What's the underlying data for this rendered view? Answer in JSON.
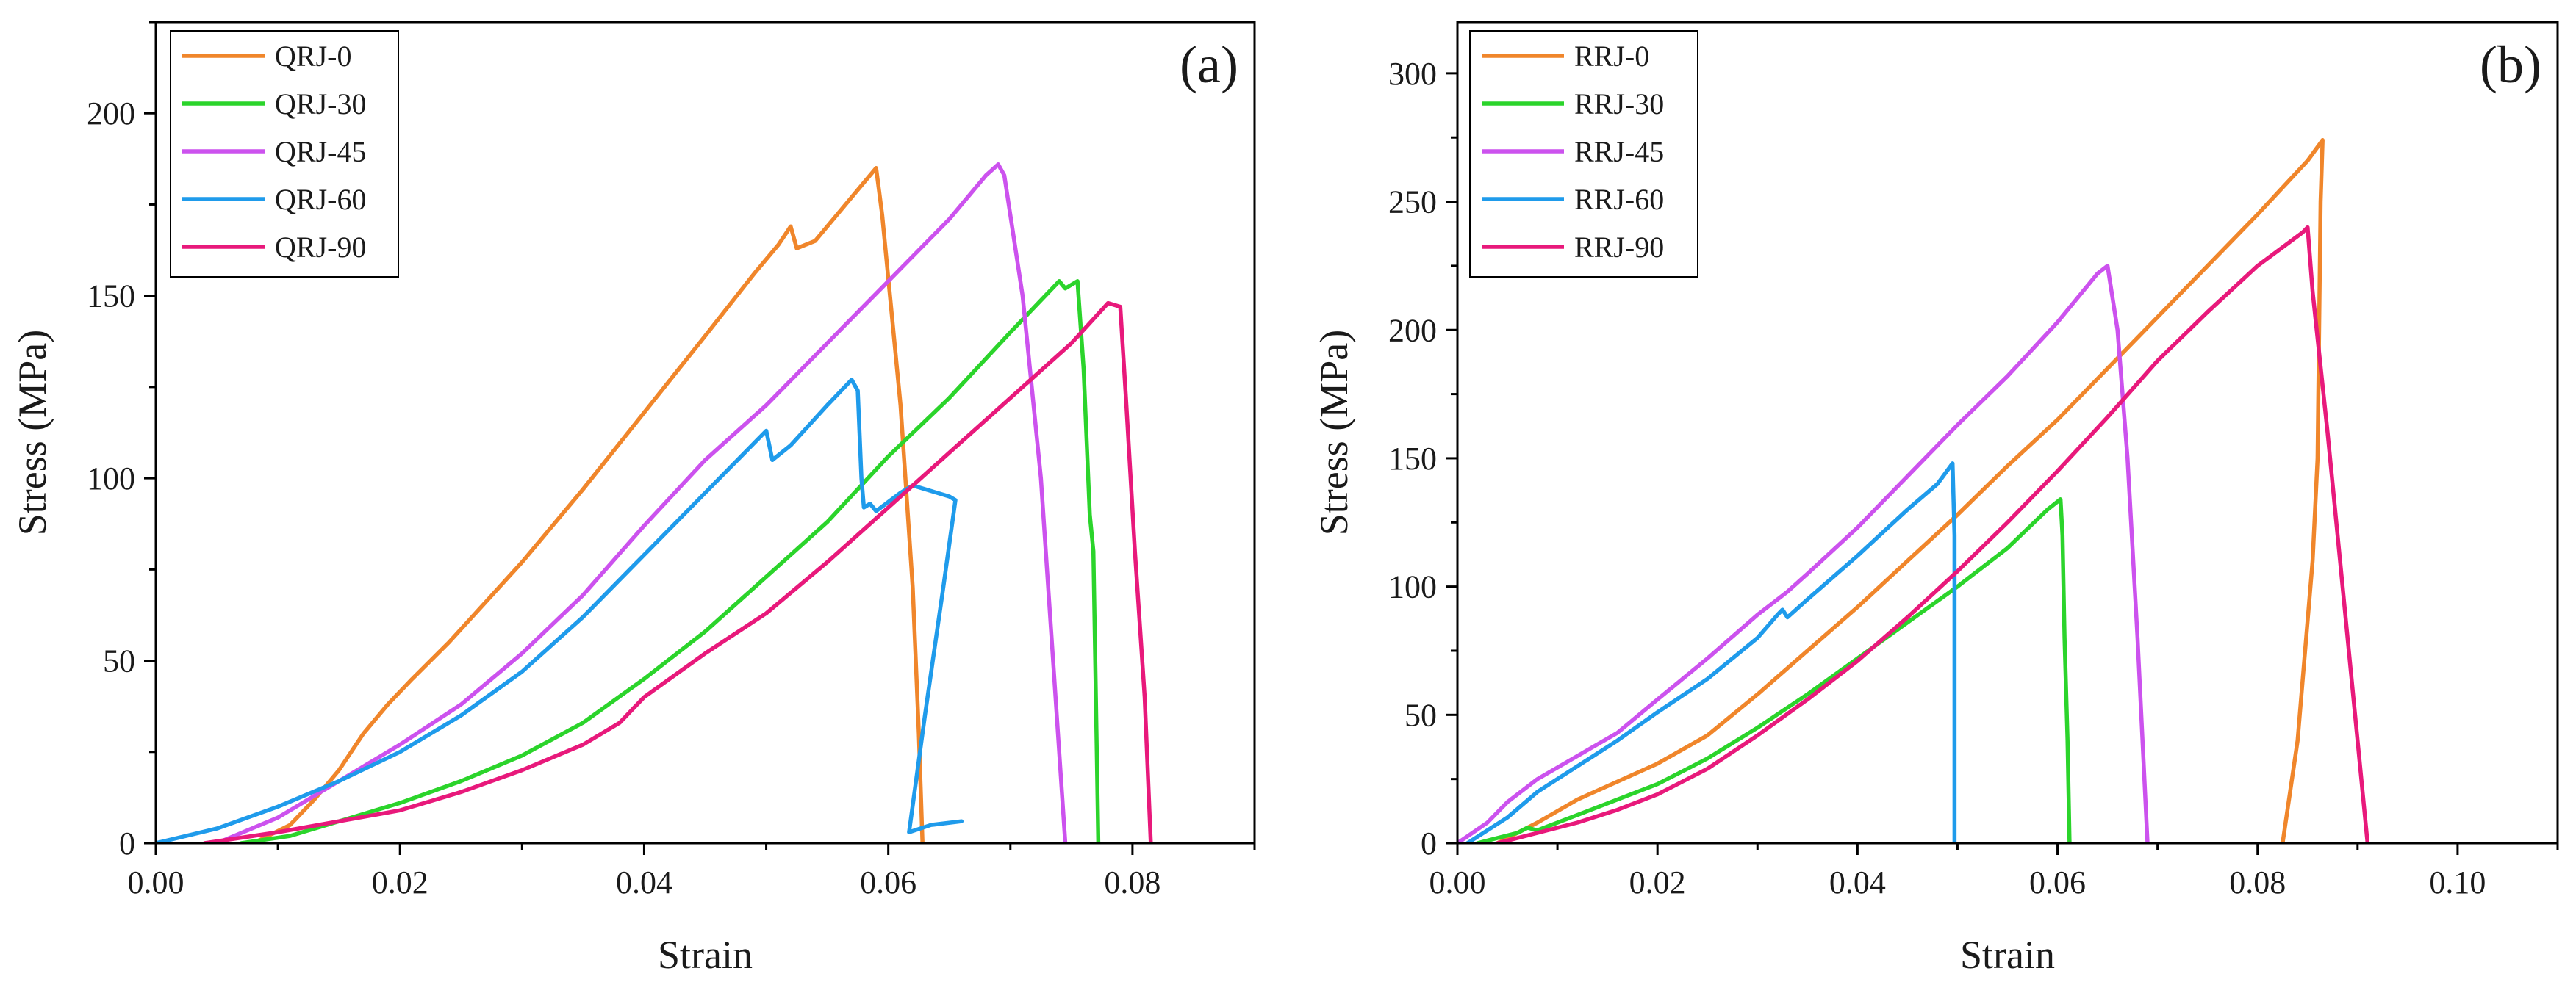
{
  "chart_data": [
    {
      "type": "line",
      "panel_label": "(a)",
      "xlabel": "Strain",
      "ylabel": "Stress (MPa)",
      "xlim": [
        0,
        0.09
      ],
      "ylim": [
        0,
        225
      ],
      "xticks": [
        0,
        0.02,
        0.04,
        0.06,
        0.08
      ],
      "xtick_labels": [
        "0.00",
        "0.02",
        "0.04",
        "0.06",
        "0.08"
      ],
      "yticks": [
        0,
        50,
        100,
        150,
        200
      ],
      "ytick_labels": [
        "0",
        "50",
        "100",
        "150",
        "200"
      ],
      "legend_position": "top-left",
      "series": [
        {
          "name": "QRJ-0",
          "color": "#F0862B",
          "points": [
            [
              0.008,
              0
            ],
            [
              0.011,
              5
            ],
            [
              0.013,
              12
            ],
            [
              0.015,
              20
            ],
            [
              0.017,
              30
            ],
            [
              0.019,
              38
            ],
            [
              0.021,
              45
            ],
            [
              0.024,
              55
            ],
            [
              0.03,
              77
            ],
            [
              0.035,
              97
            ],
            [
              0.04,
              118
            ],
            [
              0.045,
              139
            ],
            [
              0.049,
              156
            ],
            [
              0.051,
              164
            ],
            [
              0.052,
              169
            ],
            [
              0.0525,
              163
            ],
            [
              0.054,
              165
            ],
            [
              0.056,
              173
            ],
            [
              0.058,
              181
            ],
            [
              0.059,
              185
            ],
            [
              0.0595,
              172
            ],
            [
              0.061,
              120
            ],
            [
              0.062,
              70
            ],
            [
              0.0625,
              30
            ],
            [
              0.0628,
              0
            ]
          ]
        },
        {
          "name": "QRJ-30",
          "color": "#2BD42B",
          "points": [
            [
              0.007,
              0
            ],
            [
              0.011,
              2
            ],
            [
              0.015,
              6
            ],
            [
              0.02,
              11
            ],
            [
              0.025,
              17
            ],
            [
              0.03,
              24
            ],
            [
              0.035,
              33
            ],
            [
              0.04,
              45
            ],
            [
              0.045,
              58
            ],
            [
              0.05,
              73
            ],
            [
              0.055,
              88
            ],
            [
              0.06,
              106
            ],
            [
              0.065,
              122
            ],
            [
              0.07,
              140
            ],
            [
              0.074,
              154
            ],
            [
              0.0745,
              152
            ],
            [
              0.0755,
              154
            ],
            [
              0.076,
              130
            ],
            [
              0.0765,
              90
            ],
            [
              0.0768,
              80
            ],
            [
              0.077,
              40
            ],
            [
              0.0772,
              0
            ]
          ]
        },
        {
          "name": "QRJ-45",
          "color": "#CC52EE",
          "points": [
            [
              0.005,
              0
            ],
            [
              0.01,
              7
            ],
            [
              0.015,
              17
            ],
            [
              0.02,
              27
            ],
            [
              0.025,
              38
            ],
            [
              0.03,
              52
            ],
            [
              0.035,
              68
            ],
            [
              0.04,
              87
            ],
            [
              0.045,
              105
            ],
            [
              0.05,
              120
            ],
            [
              0.055,
              137
            ],
            [
              0.06,
              154
            ],
            [
              0.065,
              171
            ],
            [
              0.068,
              183
            ],
            [
              0.069,
              186
            ],
            [
              0.0695,
              183
            ],
            [
              0.071,
              150
            ],
            [
              0.0725,
              100
            ],
            [
              0.0735,
              50
            ],
            [
              0.0745,
              0
            ]
          ]
        },
        {
          "name": "QRJ-60",
          "color": "#1F9BEB",
          "points": [
            [
              0,
              0
            ],
            [
              0.005,
              4
            ],
            [
              0.01,
              10
            ],
            [
              0.015,
              17
            ],
            [
              0.02,
              25
            ],
            [
              0.025,
              35
            ],
            [
              0.03,
              47
            ],
            [
              0.035,
              62
            ],
            [
              0.04,
              79
            ],
            [
              0.045,
              96
            ],
            [
              0.05,
              113
            ],
            [
              0.0505,
              105
            ],
            [
              0.052,
              109
            ],
            [
              0.055,
              120
            ],
            [
              0.057,
              127
            ],
            [
              0.0575,
              124
            ],
            [
              0.0578,
              100
            ],
            [
              0.058,
              92
            ],
            [
              0.0585,
              93
            ],
            [
              0.059,
              91
            ],
            [
              0.061,
              96
            ],
            [
              0.062,
              98
            ],
            [
              0.064,
              96
            ],
            [
              0.065,
              95
            ],
            [
              0.0655,
              94
            ],
            [
              0.0645,
              70
            ],
            [
              0.063,
              35
            ],
            [
              0.0617,
              3
            ],
            [
              0.0635,
              5
            ],
            [
              0.066,
              6
            ]
          ]
        },
        {
          "name": "QRJ-90",
          "color": "#E8197B",
          "points": [
            [
              0.004,
              0
            ],
            [
              0.01,
              3
            ],
            [
              0.015,
              6
            ],
            [
              0.02,
              9
            ],
            [
              0.025,
              14
            ],
            [
              0.03,
              20
            ],
            [
              0.035,
              27
            ],
            [
              0.038,
              33
            ],
            [
              0.04,
              40
            ],
            [
              0.045,
              52
            ],
            [
              0.05,
              63
            ],
            [
              0.055,
              77
            ],
            [
              0.06,
              92
            ],
            [
              0.065,
              107
            ],
            [
              0.07,
              122
            ],
            [
              0.075,
              137
            ],
            [
              0.078,
              148
            ],
            [
              0.079,
              147
            ],
            [
              0.0795,
              120
            ],
            [
              0.0802,
              80
            ],
            [
              0.081,
              40
            ],
            [
              0.0815,
              0
            ]
          ]
        }
      ]
    },
    {
      "type": "line",
      "panel_label": "(b)",
      "xlabel": "Strain",
      "ylabel": "Stress (MPa)",
      "xlim": [
        0,
        0.11
      ],
      "ylim": [
        0,
        320
      ],
      "xticks": [
        0,
        0.02,
        0.04,
        0.06,
        0.08,
        0.1
      ],
      "xtick_labels": [
        "0.00",
        "0.02",
        "0.04",
        "0.06",
        "0.08",
        "0.10"
      ],
      "yticks": [
        0,
        50,
        100,
        150,
        200,
        250,
        300
      ],
      "ytick_labels": [
        "0",
        "50",
        "100",
        "150",
        "200",
        "250",
        "300"
      ],
      "legend_position": "top-left",
      "series": [
        {
          "name": "RRJ-0",
          "color": "#F0862B",
          "points": [
            [
              0.004,
              0
            ],
            [
              0.008,
              8
            ],
            [
              0.012,
              17
            ],
            [
              0.016,
              24
            ],
            [
              0.02,
              31
            ],
            [
              0.025,
              42
            ],
            [
              0.03,
              58
            ],
            [
              0.035,
              75
            ],
            [
              0.04,
              92
            ],
            [
              0.045,
              110
            ],
            [
              0.05,
              128
            ],
            [
              0.055,
              147
            ],
            [
              0.06,
              165
            ],
            [
              0.065,
              185
            ],
            [
              0.07,
              205
            ],
            [
              0.075,
              225
            ],
            [
              0.08,
              245
            ],
            [
              0.085,
              266
            ],
            [
              0.0865,
              274
            ],
            [
              0.0863,
              250
            ],
            [
              0.086,
              150
            ],
            [
              0.0855,
              110
            ],
            [
              0.084,
              40
            ],
            [
              0.0825,
              0
            ]
          ]
        },
        {
          "name": "RRJ-30",
          "color": "#2BD42B",
          "points": [
            [
              0.002,
              0
            ],
            [
              0.006,
              4
            ],
            [
              0.007,
              6
            ],
            [
              0.008,
              5
            ],
            [
              0.012,
              11
            ],
            [
              0.016,
              17
            ],
            [
              0.02,
              23
            ],
            [
              0.025,
              33
            ],
            [
              0.03,
              45
            ],
            [
              0.035,
              58
            ],
            [
              0.04,
              72
            ],
            [
              0.045,
              86
            ],
            [
              0.05,
              100
            ],
            [
              0.055,
              115
            ],
            [
              0.059,
              130
            ],
            [
              0.0603,
              134
            ],
            [
              0.0605,
              120
            ],
            [
              0.0607,
              80
            ],
            [
              0.061,
              40
            ],
            [
              0.0612,
              0
            ]
          ]
        },
        {
          "name": "RRJ-45",
          "color": "#CC52EE",
          "points": [
            [
              0,
              0
            ],
            [
              0.003,
              8
            ],
            [
              0.005,
              16
            ],
            [
              0.008,
              25
            ],
            [
              0.012,
              34
            ],
            [
              0.016,
              43
            ],
            [
              0.02,
              56
            ],
            [
              0.025,
              72
            ],
            [
              0.03,
              89
            ],
            [
              0.033,
              98
            ],
            [
              0.035,
              105
            ],
            [
              0.04,
              123
            ],
            [
              0.045,
              143
            ],
            [
              0.05,
              163
            ],
            [
              0.055,
              182
            ],
            [
              0.06,
              203
            ],
            [
              0.064,
              222
            ],
            [
              0.065,
              225
            ],
            [
              0.066,
              200
            ],
            [
              0.067,
              150
            ],
            [
              0.068,
              80
            ],
            [
              0.069,
              0
            ]
          ]
        },
        {
          "name": "RRJ-60",
          "color": "#1F9BEB",
          "points": [
            [
              0.001,
              0
            ],
            [
              0.005,
              10
            ],
            [
              0.008,
              20
            ],
            [
              0.012,
              30
            ],
            [
              0.016,
              40
            ],
            [
              0.02,
              51
            ],
            [
              0.025,
              64
            ],
            [
              0.03,
              80
            ],
            [
              0.032,
              89
            ],
            [
              0.0325,
              91
            ],
            [
              0.033,
              88
            ],
            [
              0.035,
              95
            ],
            [
              0.04,
              112
            ],
            [
              0.045,
              130
            ],
            [
              0.048,
              140
            ],
            [
              0.0495,
              148
            ],
            [
              0.0497,
              120
            ],
            [
              0.0497,
              60
            ],
            [
              0.0497,
              0
            ]
          ]
        },
        {
          "name": "RRJ-90",
          "color": "#E8197B",
          "points": [
            [
              0.004,
              0
            ],
            [
              0.008,
              4
            ],
            [
              0.012,
              8
            ],
            [
              0.016,
              13
            ],
            [
              0.02,
              19
            ],
            [
              0.025,
              29
            ],
            [
              0.03,
              42
            ],
            [
              0.035,
              56
            ],
            [
              0.04,
              71
            ],
            [
              0.045,
              88
            ],
            [
              0.05,
              106
            ],
            [
              0.055,
              125
            ],
            [
              0.06,
              145
            ],
            [
              0.065,
              166
            ],
            [
              0.07,
              188
            ],
            [
              0.075,
              207
            ],
            [
              0.08,
              225
            ],
            [
              0.0845,
              238
            ],
            [
              0.085,
              240
            ],
            [
              0.0855,
              215
            ],
            [
              0.087,
              160
            ],
            [
              0.089,
              80
            ],
            [
              0.091,
              0
            ]
          ]
        }
      ]
    }
  ]
}
